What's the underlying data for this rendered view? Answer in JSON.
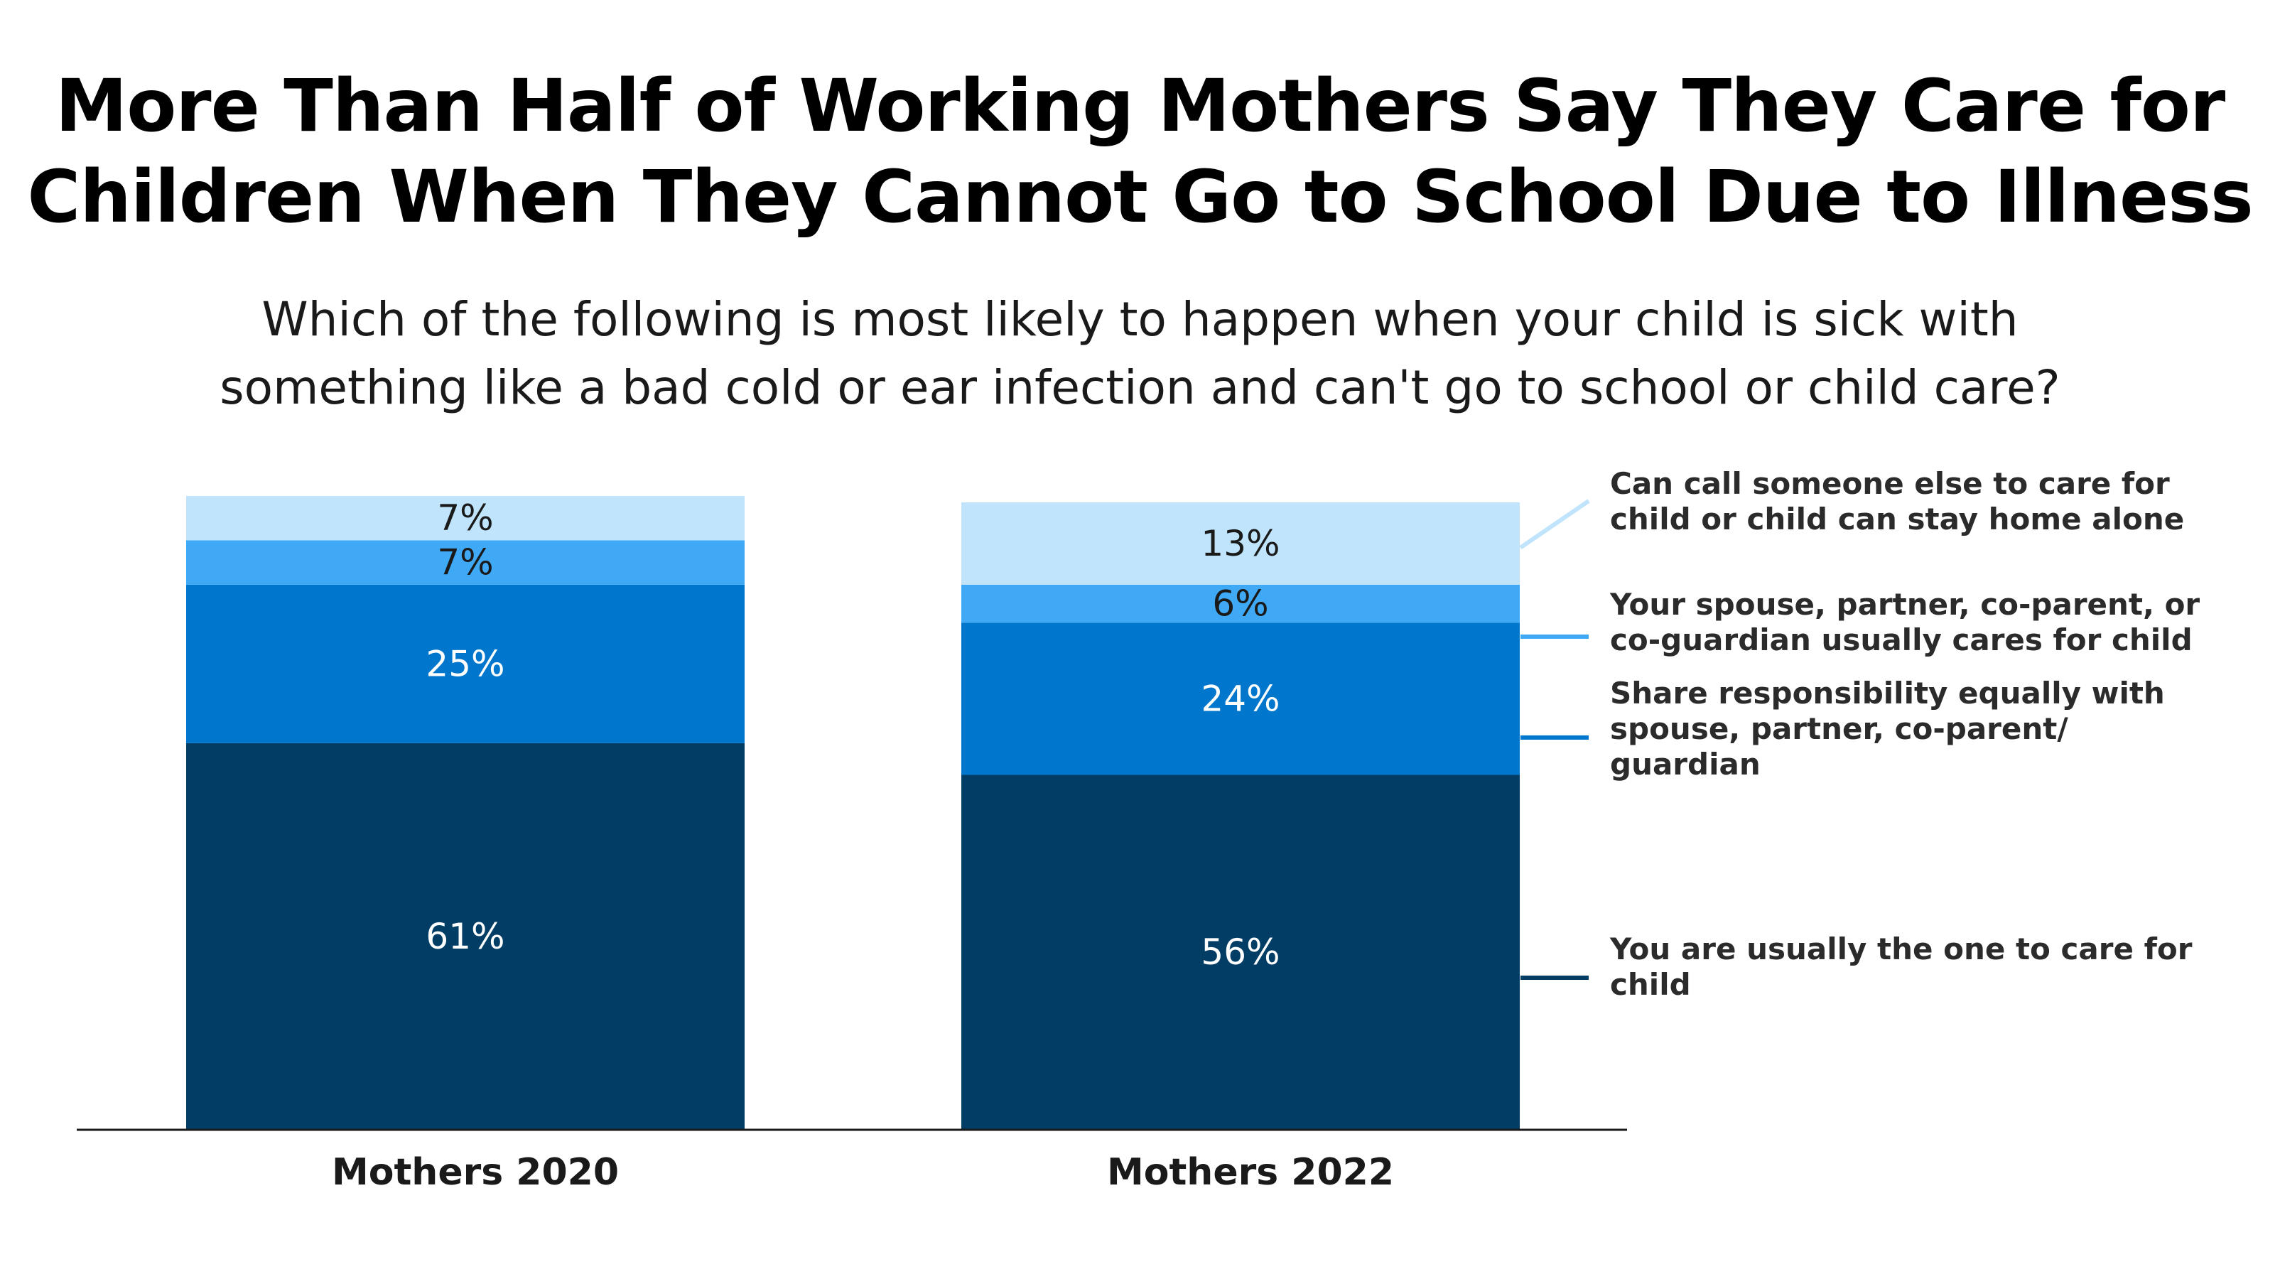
{
  "title": {
    "line1": "More Than Half of Working Mothers Say They Care for",
    "line2": "Children When They Cannot Go to School Due to Illness"
  },
  "subtitle": {
    "line1": "Which of the following is most likely to happen when your child is sick with",
    "line2": "something like a bad cold or ear infection and can't go to school or child care?"
  },
  "chart_data": {
    "type": "bar",
    "stacked": true,
    "orientation": "vertical",
    "value_format": "percent",
    "categories": [
      "Mothers 2020",
      "Mothers 2022"
    ],
    "series": [
      {
        "name": "You are usually the one to care for child",
        "legend_lines": [
          "You are usually the one to care for",
          "child"
        ],
        "values": [
          61,
          56
        ],
        "color": "#023d65",
        "label_color": "#ffffff"
      },
      {
        "name": "Share responsibility equally with spouse, partner, co-parent/ guardian",
        "legend_lines": [
          "Share responsibility equally with",
          "spouse, partner, co-parent/",
          "guardian"
        ],
        "values": [
          25,
          24
        ],
        "color": "#0077cc",
        "label_color": "#ffffff"
      },
      {
        "name": "Your spouse, partner, co-parent, or co-guardian usually cares for child",
        "legend_lines": [
          "Your spouse, partner, co-parent, or",
          "co-guardian usually cares for child"
        ],
        "values": [
          7,
          6
        ],
        "color": "#3fa9f5",
        "label_color": "#1a1a1a"
      },
      {
        "name": "Can call someone else to care for child or child can stay home alone",
        "legend_lines": [
          "Can call someone else to care for",
          "child or child can stay home alone"
        ],
        "values": [
          7,
          13
        ],
        "color": "#c0e4fc",
        "label_color": "#1a1a1a"
      }
    ],
    "ylim": [
      0,
      100
    ],
    "grid": false,
    "legend_position": "right"
  }
}
